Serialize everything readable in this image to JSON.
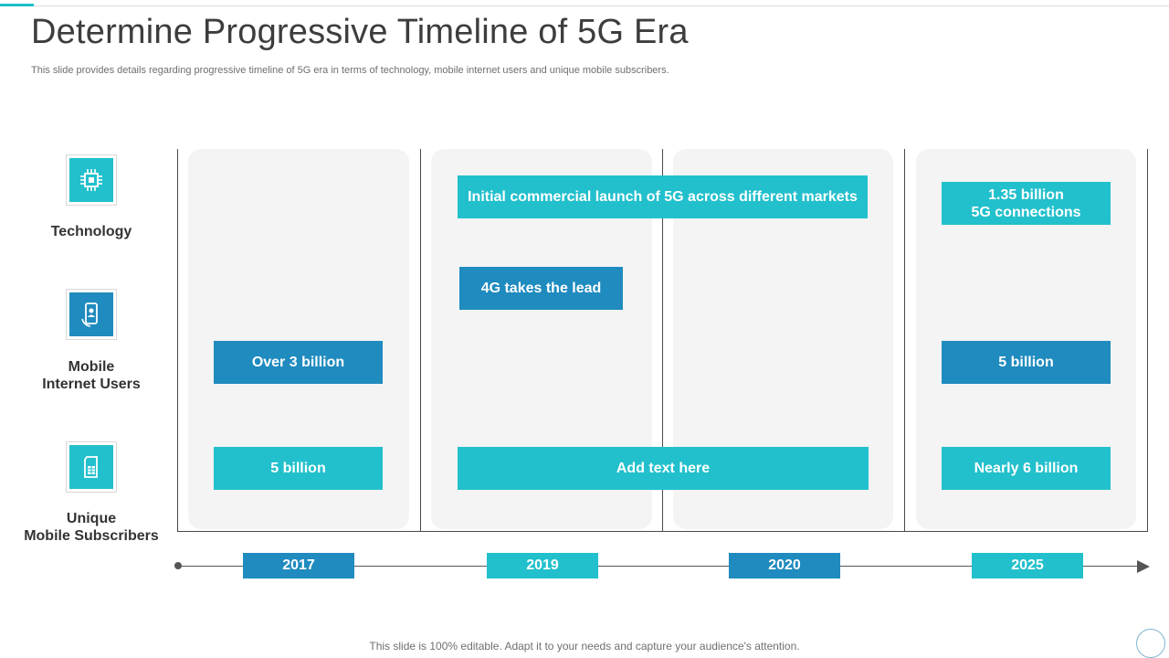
{
  "header": {
    "title": "Determine Progressive Timeline of 5G Era",
    "subtitle": "This slide provides details regarding progressive timeline of 5G era in terms of technology, mobile internet users and unique mobile subscribers."
  },
  "categories": [
    {
      "icon": "chip-icon",
      "label_line1": "Technology",
      "label_line2": ""
    },
    {
      "icon": "mobile-user-icon",
      "label_line1": "Mobile",
      "label_line2": "Internet Users"
    },
    {
      "icon": "sim-card-icon",
      "label_line1": "Unique",
      "label_line2": "Mobile Subscribers"
    }
  ],
  "timeline": {
    "years": [
      "2017",
      "2019",
      "2020",
      "2025"
    ]
  },
  "cells": {
    "tech_2019_2020": "Initial commercial launch of 5G across different markets",
    "tech_2025_line1": "1.35 billion",
    "tech_2025_line2": "5G connections",
    "tech_2019b": "4G takes the lead",
    "users_2017": "Over 3 billion",
    "users_2025": "5 billion",
    "subs_2017": "5 billion",
    "subs_2019_2020": "Add text here",
    "subs_2025": "Nearly 6 billion"
  },
  "footer": {
    "text": "This slide is 100% editable. Adapt it to your needs and capture your audience's attention."
  },
  "colors": {
    "teal": "#22c0cc",
    "blue": "#1f8bbf",
    "column_bg": "#f4f4f4",
    "title": "#3d3d3d"
  }
}
